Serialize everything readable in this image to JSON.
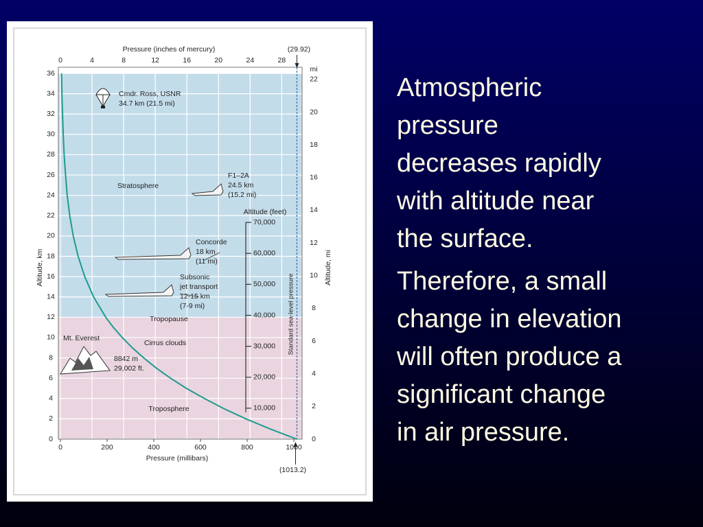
{
  "slide": {
    "paragraphs": [
      [
        "Atmospheric",
        "pressure",
        "decreases rapidly",
        "with altitude near",
        "the surface."
      ],
      [
        "Therefore, a small",
        "change in elevation",
        "will often produce a",
        "significant change",
        "in air pressure."
      ]
    ]
  },
  "chart_data": {
    "type": "line",
    "x_label": "Pressure (millibars)",
    "x2_label": "Pressure (inches of mercury)",
    "y_label": "Altitude, km",
    "y2_label": "Altitude, mi",
    "y2_unit": "mi",
    "y3_label": "Altitude (feet)",
    "reference_label": "Standard sea-level pressure",
    "xlim": [
      0,
      1013.2
    ],
    "xticks": [
      0,
      200,
      400,
      600,
      800,
      1000,
      {
        "value": 1013.2,
        "label": "(1013.2)"
      }
    ],
    "x2lim": [
      0,
      29.92
    ],
    "x2ticks": [
      0,
      4,
      8,
      12,
      16,
      20,
      24,
      28,
      {
        "value": 29.92,
        "label": "(29.92)"
      }
    ],
    "ylim": [
      0,
      36
    ],
    "yticks": [
      0,
      2,
      4,
      6,
      8,
      10,
      12,
      14,
      16,
      18,
      20,
      22,
      24,
      26,
      28,
      30,
      32,
      34,
      36
    ],
    "y2lim": [
      0,
      22.37
    ],
    "y2ticks": [
      0,
      2,
      4,
      6,
      8,
      10,
      12,
      14,
      16,
      18,
      20,
      22
    ],
    "y3lim": [
      0,
      118110
    ],
    "y3ticks": [
      {
        "value": 10000,
        "label": "10,000"
      },
      {
        "value": 20000,
        "label": "20,000"
      },
      {
        "value": 30000,
        "label": "30,000"
      },
      {
        "value": 40000,
        "label": "40,000"
      },
      {
        "value": 50000,
        "label": "50,000"
      },
      {
        "value": 60000,
        "label": "60,000"
      },
      {
        "value": 70000,
        "label": "70,000"
      }
    ],
    "grid": true,
    "color": "#1f9a8f",
    "x": [
      1013,
      899,
      795,
      701,
      617,
      540,
      472,
      411,
      357,
      308,
      265,
      227,
      194,
      142,
      104,
      76,
      55,
      40,
      29,
      22,
      16,
      12,
      9,
      6.6,
      4.9
    ],
    "values": [
      0,
      1,
      2,
      3,
      4,
      5,
      6,
      7,
      8,
      9,
      10,
      11,
      12,
      14,
      16,
      18,
      20,
      22,
      24,
      26,
      28,
      30,
      32,
      34,
      36
    ],
    "bands": [
      {
        "name": "Stratosphere",
        "from": 12,
        "to": 36,
        "color": "#c3dcea"
      },
      {
        "name": "Troposphere",
        "from": 0,
        "to": 12,
        "color": "#e9d4df"
      }
    ],
    "boundary_label": "Tropopause",
    "annotations": [
      {
        "lines": [
          "Cmdr. Ross, USNR",
          "34.7 km (21.5 mi)"
        ]
      },
      {
        "lines": [
          "F1–2A",
          "24.5 km",
          "(15.2 mi)"
        ]
      },
      {
        "lines": [
          "Concorde",
          "18 km",
          "(11 mi)"
        ]
      },
      {
        "lines": [
          "Subsonic",
          "jet transport",
          "12-15 km",
          "(7-9 mi)"
        ]
      },
      {
        "lines": [
          "Cirrus clouds"
        ]
      },
      {
        "lines": [
          "Mt. Everest"
        ]
      },
      {
        "lines": [
          "8842 m",
          "29,002 ft."
        ]
      }
    ]
  }
}
